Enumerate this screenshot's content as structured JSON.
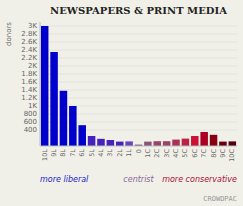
{
  "chart_data": {
    "type": "bar",
    "title": "NEWSPAPERS & PRINT MEDIA",
    "categories": [
      "10L",
      "9L",
      "8L",
      "7L",
      "6L",
      "5L",
      "4L",
      "3L",
      "2L",
      "1L",
      "0",
      "1C",
      "2C",
      "3C",
      "4C",
      "5C",
      "6C",
      "7C",
      "8C",
      "9C",
      "10C"
    ],
    "values": [
      3000,
      2350,
      1380,
      1000,
      520,
      250,
      180,
      150,
      110,
      115,
      35,
      110,
      120,
      120,
      160,
      185,
      250,
      350,
      280,
      110,
      115
    ],
    "colors": [
      "#0000cc",
      "#0000cc",
      "#0000cc",
      "#0000cc",
      "#0000cc",
      "#4422bb",
      "#4422bb",
      "#4422bb",
      "#4422bb",
      "#6644bb",
      "#775588",
      "#885577",
      "#994466",
      "#994466",
      "#aa3355",
      "#bb2244",
      "#cc1133",
      "#aa0022",
      "#880011",
      "#660011",
      "#550011"
    ],
    "ylabel": "donors",
    "annotations": [
      {
        "text": "more liberal",
        "color": "#2222cc"
      },
      {
        "text": "centrist",
        "color": "#886699"
      },
      {
        "text": "more conservative",
        "color": "#aa1133"
      }
    ],
    "credit": "CROWDPAC",
    "ylim": [
      0,
      3100
    ],
    "yticks": [
      400,
      600,
      800,
      {
        "value": 1000,
        "label": "1K"
      },
      {
        "value": 1200,
        "label": "1.2K"
      },
      {
        "value": 1400,
        "label": "1.4K"
      },
      {
        "value": 1600,
        "label": "1.6K"
      },
      {
        "value": 1800,
        "label": "1.8K"
      },
      {
        "value": 2000,
        "label": "2K"
      },
      {
        "value": 2200,
        "label": "2.2K"
      },
      {
        "value": 2400,
        "label": "2.4K"
      },
      {
        "value": 2600,
        "label": "2.6K"
      },
      {
        "value": 2800,
        "label": "2.8K"
      },
      {
        "value": 3000,
        "label": "3K"
      }
    ],
    "grid": true
  }
}
